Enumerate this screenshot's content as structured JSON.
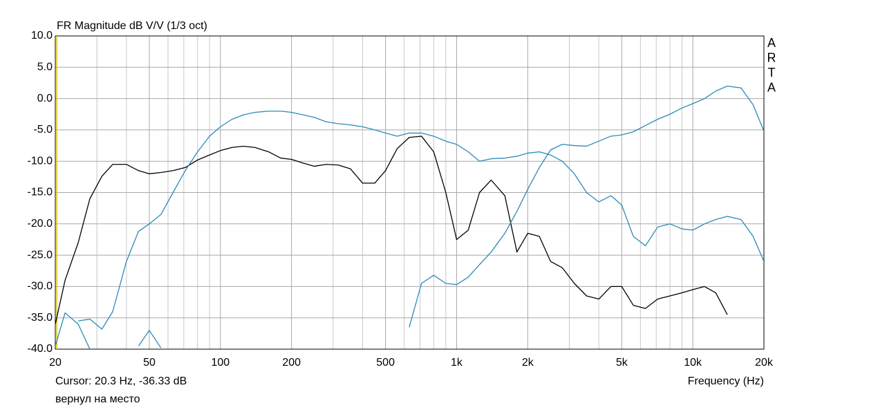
{
  "chart_data": {
    "type": "line",
    "title": "FR Magnitude dB V/V (1/3 oct)",
    "brand": [
      "A",
      "R",
      "T",
      "A"
    ],
    "x_label": "Frequency (Hz)",
    "cursor_text": "Cursor: 20.3 Hz, -36.33 dB",
    "note": "вернул на место",
    "cursor_hz": 20.3,
    "cursor_color": "#e8c800",
    "xscale": "log",
    "grid": true,
    "x": [
      20,
      22,
      25,
      28,
      31.5,
      35,
      40,
      45,
      50,
      56,
      63,
      71,
      80,
      90,
      100,
      112,
      125,
      140,
      160,
      180,
      200,
      224,
      250,
      280,
      315,
      355,
      400,
      450,
      500,
      560,
      630,
      710,
      800,
      900,
      1000,
      1120,
      1250,
      1400,
      1600,
      1800,
      2000,
      2240,
      2500,
      2800,
      3150,
      3550,
      4000,
      4500,
      5000,
      5600,
      6300,
      7100,
      8000,
      9000,
      10000,
      11200,
      12500,
      14000,
      16000,
      18000,
      20000
    ],
    "series": [
      {
        "color": "#000000",
        "values": [
          -36,
          -29,
          -23,
          -16,
          -12.4,
          -10.5,
          -10.5,
          -11.5,
          -12,
          -11.8,
          -11.5,
          -11,
          -9.8,
          -9,
          -8.3,
          -7.8,
          -7.6,
          -7.8,
          -8.5,
          -9.5,
          -9.7,
          -10.3,
          -10.8,
          -10.5,
          -10.6,
          -11.2,
          -13.5,
          -13.5,
          -11.5,
          -8,
          -6.2,
          -6,
          -8.5,
          -15,
          -22.5,
          -21,
          -15,
          -13,
          -15.5,
          -24.5,
          -21.5,
          -22,
          -26,
          -27,
          -29.5,
          -31.5,
          -32,
          -30,
          -30,
          -33,
          -33.5,
          -32,
          -31.5,
          -31,
          -30.5,
          -30,
          -31,
          -34.5,
          null,
          null,
          null
        ]
      },
      {
        "color": "#2a8ab8",
        "values": [
          null,
          null,
          -35.5,
          -35.2,
          -36.8,
          -34,
          -26,
          -21.2,
          -20,
          -18.5,
          -15,
          -11.5,
          -8.5,
          -6,
          -4.5,
          -3.3,
          -2.6,
          -2.2,
          -2,
          -2,
          -2.2,
          -2.6,
          -3,
          -3.7,
          -4,
          -4.2,
          -4.5,
          -5,
          -5.5,
          -6,
          -5.5,
          -5.5,
          -6,
          -6.8,
          -7.3,
          -8.5,
          -10,
          -9.6,
          -9.5,
          -9.2,
          -8.7,
          -8.5,
          -9,
          -10,
          -12,
          -15,
          -16.5,
          -15.5,
          -17,
          -22,
          -23.5,
          -20.5,
          -20,
          -20.8,
          -21,
          -20,
          -19.3,
          -18.8,
          -19.3,
          -22,
          -26
        ]
      },
      {
        "color": "#2a8ab8",
        "values": [
          -39.5,
          -34.2,
          -36,
          -40,
          null,
          null,
          null,
          -39.5,
          -37,
          -39.8,
          null,
          null,
          null,
          null,
          null,
          null,
          null,
          null,
          null,
          null,
          null,
          null,
          null,
          null,
          null,
          null,
          null,
          null,
          null,
          null,
          -36.5,
          -29.5,
          -28.2,
          -29.5,
          -29.7,
          -28.5,
          -26.5,
          -24.5,
          -21.5,
          -18,
          -14.5,
          -11,
          -8.2,
          -7.3,
          -7.5,
          -7.6,
          -6.8,
          -6,
          -5.8,
          -5.3,
          -4.3,
          -3.3,
          -2.5,
          -1.5,
          -0.8,
          0,
          1.2,
          2,
          1.7,
          -1,
          -5.2
        ]
      }
    ],
    "xlim": [
      20,
      20000
    ],
    "ylim": [
      -40,
      10
    ],
    "xticks": [
      20,
      50,
      100,
      200,
      500,
      {
        "value": 1000,
        "label": "1k"
      },
      {
        "value": 2000,
        "label": "2k"
      },
      {
        "value": 5000,
        "label": "5k"
      },
      {
        "value": 10000,
        "label": "10k"
      },
      {
        "value": 20000,
        "label": "20k"
      }
    ],
    "xgrid_minor": [
      30,
      40,
      60,
      70,
      80,
      90,
      300,
      400,
      600,
      700,
      800,
      900,
      3000,
      4000,
      6000,
      7000,
      8000,
      9000
    ],
    "yticks": [
      {
        "value": 10,
        "label": "10.0"
      },
      {
        "value": 5,
        "label": "5.0"
      },
      {
        "value": 0,
        "label": "0.0"
      },
      {
        "value": -5,
        "label": "-5.0"
      },
      {
        "value": -10,
        "label": "-10.0"
      },
      {
        "value": -15,
        "label": "-15.0"
      },
      {
        "value": -20,
        "label": "-20.0"
      },
      {
        "value": -25,
        "label": "-25.0"
      },
      {
        "value": -30,
        "label": "-30.0"
      },
      {
        "value": -35,
        "label": "-35.0"
      },
      {
        "value": -40,
        "label": "-40.0"
      }
    ]
  }
}
